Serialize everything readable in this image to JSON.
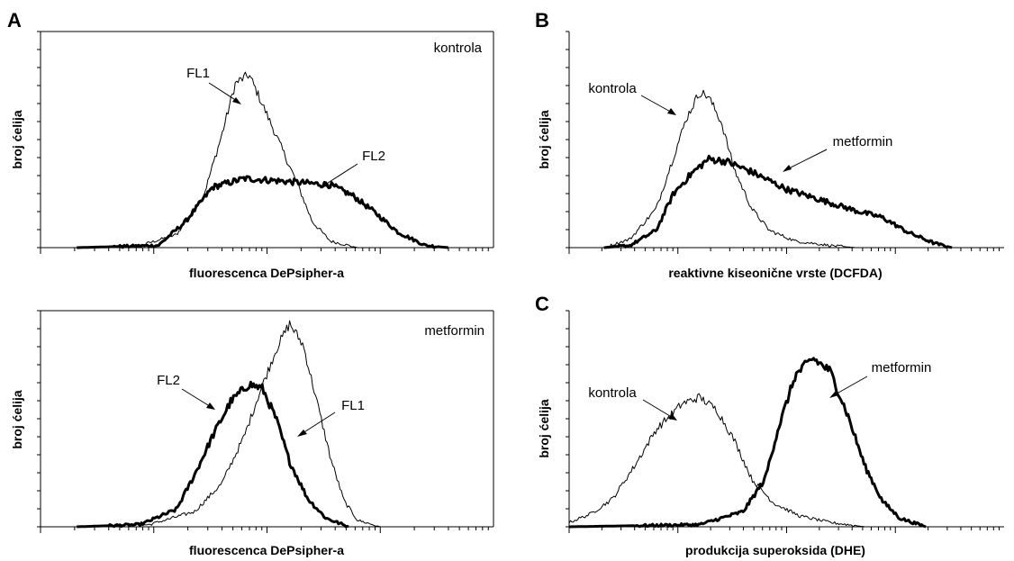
{
  "chart_data": [
    {
      "panel": "A",
      "type": "line",
      "xlabel": "fluorescenca DePsipher-a",
      "ylabel": "broj ćelija",
      "condition": "kontrola",
      "x_scale": "log",
      "series": [
        {
          "name": "FL1",
          "style": "thin",
          "points": [
            [
              0.08,
              0
            ],
            [
              0.22,
              0.01
            ],
            [
              0.3,
              0.06
            ],
            [
              0.36,
              0.24
            ],
            [
              0.4,
              0.52
            ],
            [
              0.43,
              0.76
            ],
            [
              0.46,
              0.8
            ],
            [
              0.48,
              0.71
            ],
            [
              0.52,
              0.52
            ],
            [
              0.57,
              0.28
            ],
            [
              0.6,
              0.12
            ],
            [
              0.64,
              0.03
            ],
            [
              0.7,
              0
            ]
          ]
        },
        {
          "name": "FL2",
          "style": "thick",
          "points": [
            [
              0.08,
              0
            ],
            [
              0.26,
              0.01
            ],
            [
              0.32,
              0.12
            ],
            [
              0.38,
              0.28
            ],
            [
              0.45,
              0.32
            ],
            [
              0.52,
              0.31
            ],
            [
              0.58,
              0.3
            ],
            [
              0.64,
              0.29
            ],
            [
              0.69,
              0.24
            ],
            [
              0.74,
              0.16
            ],
            [
              0.79,
              0.07
            ],
            [
              0.85,
              0.01
            ],
            [
              0.9,
              0
            ]
          ]
        }
      ],
      "annotations": [
        "FL1",
        "FL2"
      ]
    },
    {
      "panel": "A",
      "type": "line",
      "xlabel": "fluorescenca DePsipher-a",
      "ylabel": "broj ćelija",
      "condition": "metformin",
      "x_scale": "log",
      "series": [
        {
          "name": "FL1",
          "style": "thin",
          "points": [
            [
              0.08,
              0
            ],
            [
              0.24,
              0.01
            ],
            [
              0.34,
              0.07
            ],
            [
              0.4,
              0.2
            ],
            [
              0.45,
              0.42
            ],
            [
              0.48,
              0.6
            ],
            [
              0.52,
              0.82
            ],
            [
              0.55,
              0.94
            ],
            [
              0.58,
              0.84
            ],
            [
              0.61,
              0.58
            ],
            [
              0.64,
              0.32
            ],
            [
              0.67,
              0.12
            ],
            [
              0.7,
              0.03
            ],
            [
              0.75,
              0
            ]
          ]
        },
        {
          "name": "FL2",
          "style": "thick",
          "points": [
            [
              0.08,
              0
            ],
            [
              0.22,
              0.01
            ],
            [
              0.3,
              0.08
            ],
            [
              0.34,
              0.24
            ],
            [
              0.38,
              0.42
            ],
            [
              0.42,
              0.58
            ],
            [
              0.46,
              0.66
            ],
            [
              0.49,
              0.64
            ],
            [
              0.52,
              0.5
            ],
            [
              0.55,
              0.3
            ],
            [
              0.59,
              0.13
            ],
            [
              0.63,
              0.04
            ],
            [
              0.68,
              0
            ]
          ]
        }
      ],
      "annotations": [
        "FL2",
        "FL1"
      ]
    },
    {
      "panel": "B",
      "type": "line",
      "xlabel": "reaktivne kiseonične vrste (DCFDA)",
      "ylabel": "broj ćelija",
      "condition": "",
      "x_scale": "log",
      "series": [
        {
          "name": "kontrola",
          "style": "thin",
          "points": [
            [
              0.08,
              0
            ],
            [
              0.14,
              0.04
            ],
            [
              0.2,
              0.18
            ],
            [
              0.24,
              0.42
            ],
            [
              0.27,
              0.6
            ],
            [
              0.3,
              0.72
            ],
            [
              0.32,
              0.7
            ],
            [
              0.35,
              0.58
            ],
            [
              0.38,
              0.36
            ],
            [
              0.42,
              0.18
            ],
            [
              0.46,
              0.08
            ],
            [
              0.52,
              0.03
            ],
            [
              0.6,
              0.01
            ],
            [
              0.66,
              0
            ]
          ]
        },
        {
          "name": "metformin",
          "style": "thick",
          "points": [
            [
              0.08,
              0
            ],
            [
              0.14,
              0.01
            ],
            [
              0.2,
              0.08
            ],
            [
              0.24,
              0.25
            ],
            [
              0.28,
              0.34
            ],
            [
              0.32,
              0.41
            ],
            [
              0.36,
              0.4
            ],
            [
              0.42,
              0.35
            ],
            [
              0.5,
              0.27
            ],
            [
              0.58,
              0.22
            ],
            [
              0.66,
              0.17
            ],
            [
              0.72,
              0.14
            ],
            [
              0.78,
              0.07
            ],
            [
              0.84,
              0.02
            ],
            [
              0.88,
              0
            ]
          ]
        }
      ],
      "annotations": [
        "kontrola",
        "metformin"
      ]
    },
    {
      "panel": "C",
      "type": "line",
      "xlabel": "produkcija superoksida (DHE)",
      "ylabel": "broj ćelija",
      "condition": "",
      "x_scale": "log",
      "series": [
        {
          "name": "kontrola",
          "style": "thin",
          "points": [
            [
              0.0,
              0.02
            ],
            [
              0.05,
              0.06
            ],
            [
              0.1,
              0.13
            ],
            [
              0.15,
              0.28
            ],
            [
              0.2,
              0.45
            ],
            [
              0.26,
              0.57
            ],
            [
              0.3,
              0.6
            ],
            [
              0.34,
              0.54
            ],
            [
              0.38,
              0.4
            ],
            [
              0.42,
              0.22
            ],
            [
              0.47,
              0.11
            ],
            [
              0.53,
              0.05
            ],
            [
              0.6,
              0.02
            ],
            [
              0.68,
              0
            ]
          ]
        },
        {
          "name": "metformin",
          "style": "thick",
          "points": [
            [
              0.0,
              0
            ],
            [
              0.3,
              0.01
            ],
            [
              0.4,
              0.07
            ],
            [
              0.45,
              0.22
            ],
            [
              0.48,
              0.45
            ],
            [
              0.52,
              0.7
            ],
            [
              0.56,
              0.78
            ],
            [
              0.6,
              0.72
            ],
            [
              0.64,
              0.52
            ],
            [
              0.68,
              0.28
            ],
            [
              0.72,
              0.12
            ],
            [
              0.76,
              0.04
            ],
            [
              0.82,
              0
            ]
          ]
        }
      ],
      "annotations": [
        "kontrola",
        "metformin"
      ]
    }
  ],
  "panel_labels": [
    "A",
    "B",
    "C"
  ],
  "colors": {
    "line": "#000000",
    "background": "#ffffff"
  }
}
